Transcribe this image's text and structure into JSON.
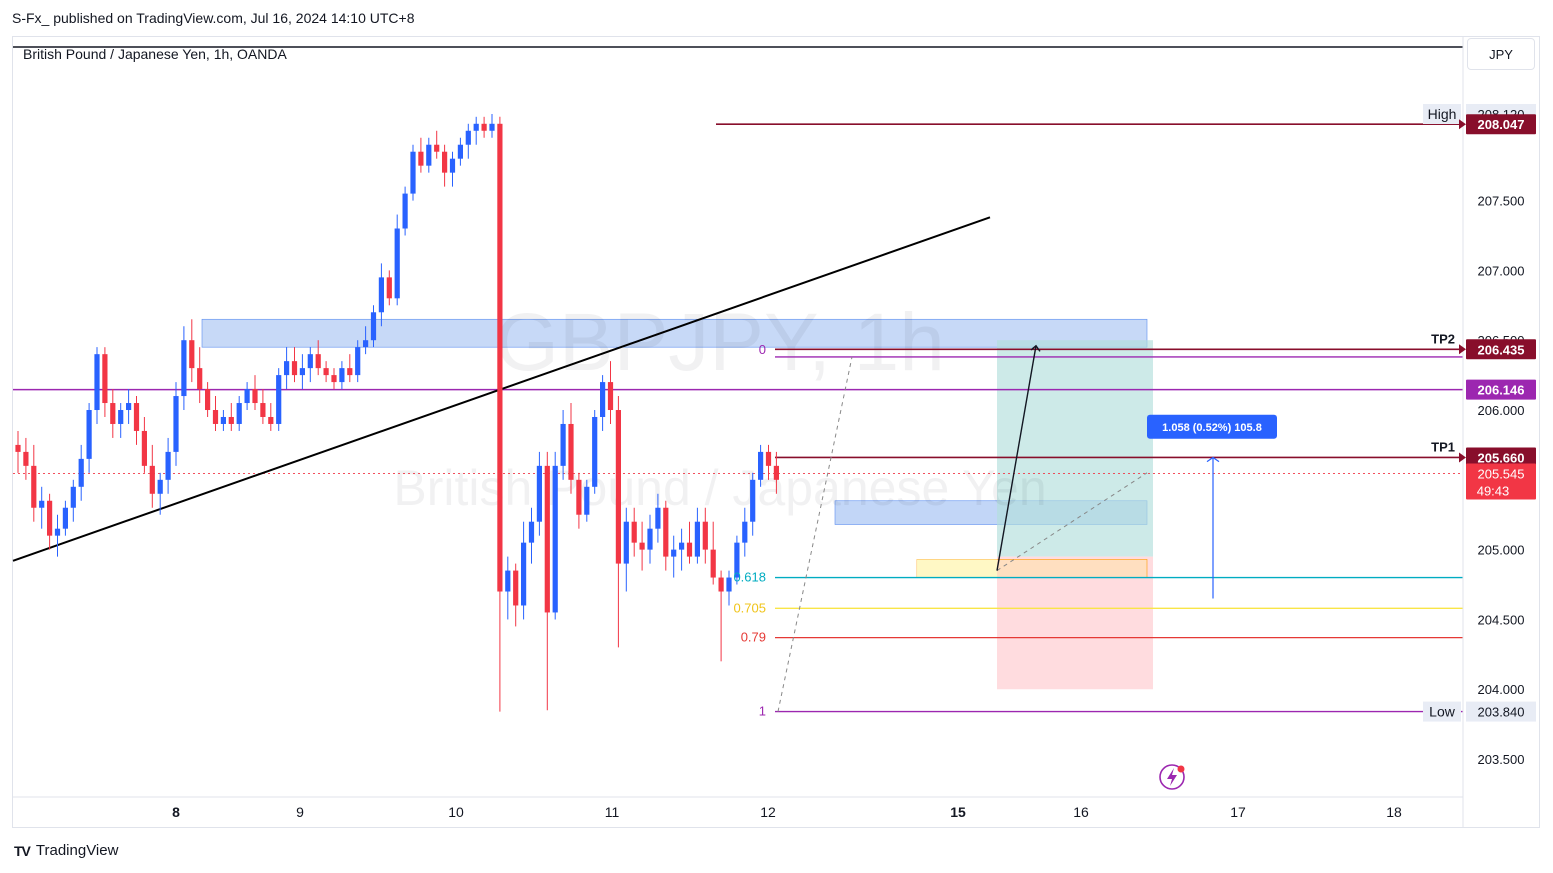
{
  "header": {
    "published_by": "S-Fx_ published on TradingView.com, Jul 16, 2024 14:10 UTC+8"
  },
  "symbol": {
    "title": "British Pound / Japanese Yen, 1h, OANDA",
    "watermark_ticker": "GBPJPY, 1h",
    "watermark_name": "British Pound / Japanese Yen"
  },
  "currency_button": "JPY",
  "footer": {
    "brand": "TradingView",
    "logo_text": "TV"
  },
  "colors": {
    "up": "#2962ff",
    "down": "#f23645",
    "resistance": "#880e2b",
    "purple": "#9c27b0",
    "teal": "#00acc1",
    "yellow": "#f9e547",
    "red_level": "#e53935",
    "zone_blue": "#90b4f0",
    "tp_zone": "#b2dfdb",
    "sl_zone": "#ffcdd2",
    "badge_blue": "#2962ff"
  },
  "chart_data": {
    "type": "candlestick",
    "symbol": "GBPJPY",
    "timeframe": "1h",
    "ylim": [
      203.35,
      208.6
    ],
    "y_ticks": [
      "208.120",
      "207.500",
      "207.000",
      "206.500",
      "206.000",
      "205.000",
      "204.500",
      "204.000",
      "203.840",
      "203.500"
    ],
    "y_tick_values": [
      208.12,
      207.5,
      207.0,
      206.5,
      206.0,
      205.0,
      204.5,
      204.0,
      203.84,
      203.5
    ],
    "x_ticks": [
      "8",
      "9",
      "10",
      "11",
      "12",
      "15",
      "16",
      "17",
      "18"
    ],
    "x_ticks_bold": [
      "8",
      "15"
    ],
    "price_labels": [
      {
        "text": "High",
        "value": "208.120",
        "price": 208.12,
        "style": "high"
      },
      {
        "text": "",
        "value": "208.047",
        "price": 208.047,
        "style": "resistance"
      },
      {
        "text": "TP2",
        "value": "206.435",
        "price": 206.435,
        "style": "resistance"
      },
      {
        "text": "",
        "value": "206.146",
        "price": 206.146,
        "style": "purple"
      },
      {
        "text": "TP1",
        "value": "205.660",
        "price": 205.66,
        "style": "resistance"
      },
      {
        "text": "",
        "value": "205.545",
        "price": 205.545,
        "style": "current",
        "countdown": "49:43"
      },
      {
        "text": "Low",
        "value": "203.840",
        "price": 203.84,
        "style": "low"
      }
    ],
    "fib_levels": [
      {
        "label": "0",
        "price": 206.43
      },
      {
        "label": "0.618",
        "price": 204.8
      },
      {
        "label": "0.705",
        "price": 204.58
      },
      {
        "label": "0.79",
        "price": 204.37
      },
      {
        "label": "1",
        "price": 203.84
      }
    ],
    "measure_label": "1.058 (0.52%) 105.8",
    "candles": [
      [
        205.75,
        205.85,
        205.55,
        205.7
      ],
      [
        205.7,
        205.8,
        205.5,
        205.6
      ],
      [
        205.6,
        205.75,
        205.2,
        205.3
      ],
      [
        205.3,
        205.45,
        205.15,
        205.35
      ],
      [
        205.35,
        205.4,
        205.0,
        205.1
      ],
      [
        205.1,
        205.25,
        204.95,
        205.15
      ],
      [
        205.15,
        205.35,
        205.1,
        205.3
      ],
      [
        205.3,
        205.5,
        205.2,
        205.45
      ],
      [
        205.45,
        205.75,
        205.35,
        205.65
      ],
      [
        205.65,
        206.05,
        205.55,
        206.0
      ],
      [
        206.0,
        206.45,
        205.9,
        206.4
      ],
      [
        206.4,
        206.45,
        205.95,
        206.05
      ],
      [
        206.05,
        206.15,
        205.8,
        205.9
      ],
      [
        205.9,
        206.05,
        205.8,
        206.0
      ],
      [
        206.0,
        206.15,
        205.9,
        206.05
      ],
      [
        206.05,
        206.1,
        205.75,
        205.85
      ],
      [
        205.85,
        205.95,
        205.55,
        205.6
      ],
      [
        205.6,
        205.75,
        205.3,
        205.4
      ],
      [
        205.4,
        205.55,
        205.25,
        205.5
      ],
      [
        205.5,
        205.8,
        205.4,
        205.7
      ],
      [
        205.7,
        206.2,
        205.6,
        206.1
      ],
      [
        206.1,
        206.6,
        206.0,
        206.5
      ],
      [
        206.5,
        206.65,
        206.2,
        206.3
      ],
      [
        206.3,
        206.45,
        206.05,
        206.15
      ],
      [
        206.15,
        206.2,
        205.95,
        206.0
      ],
      [
        206.0,
        206.1,
        205.85,
        205.9
      ],
      [
        205.9,
        206.0,
        205.85,
        205.95
      ],
      [
        205.95,
        206.05,
        205.85,
        205.9
      ],
      [
        205.9,
        206.1,
        205.85,
        206.05
      ],
      [
        206.05,
        206.2,
        206.0,
        206.15
      ],
      [
        206.15,
        206.25,
        206.0,
        206.05
      ],
      [
        206.05,
        206.15,
        205.9,
        205.95
      ],
      [
        205.95,
        206.05,
        205.85,
        205.9
      ],
      [
        205.9,
        206.3,
        205.85,
        206.25
      ],
      [
        206.25,
        206.45,
        206.15,
        206.35
      ],
      [
        206.35,
        206.45,
        206.2,
        206.25
      ],
      [
        206.25,
        206.4,
        206.15,
        206.3
      ],
      [
        206.3,
        206.45,
        206.2,
        206.4
      ],
      [
        206.4,
        206.5,
        206.25,
        206.3
      ],
      [
        206.3,
        206.35,
        206.2,
        206.25
      ],
      [
        206.25,
        206.3,
        206.15,
        206.2
      ],
      [
        206.2,
        206.35,
        206.15,
        206.3
      ],
      [
        206.3,
        206.4,
        206.2,
        206.25
      ],
      [
        206.25,
        206.5,
        206.2,
        206.45
      ],
      [
        206.45,
        206.6,
        206.4,
        206.5
      ],
      [
        206.5,
        206.75,
        206.45,
        206.7
      ],
      [
        206.7,
        207.05,
        206.6,
        206.95
      ],
      [
        206.95,
        207.0,
        206.75,
        206.8
      ],
      [
        206.8,
        207.4,
        206.75,
        207.3
      ],
      [
        207.3,
        207.6,
        207.25,
        207.55
      ],
      [
        207.55,
        207.9,
        207.5,
        207.85
      ],
      [
        207.85,
        207.95,
        207.7,
        207.75
      ],
      [
        207.75,
        207.95,
        207.7,
        207.9
      ],
      [
        207.9,
        208.0,
        207.8,
        207.85
      ],
      [
        207.85,
        207.9,
        207.6,
        207.7
      ],
      [
        207.7,
        207.85,
        207.6,
        207.8
      ],
      [
        207.8,
        207.95,
        207.75,
        207.9
      ],
      [
        207.9,
        208.05,
        207.8,
        208.0
      ],
      [
        208.0,
        208.1,
        207.9,
        208.05
      ],
      [
        208.05,
        208.1,
        207.95,
        208.0
      ],
      [
        208.0,
        208.12,
        207.95,
        208.05
      ],
      [
        208.05,
        208.1,
        203.84,
        204.7
      ],
      [
        204.7,
        204.95,
        204.5,
        204.85
      ],
      [
        204.85,
        204.9,
        204.45,
        204.6
      ],
      [
        204.6,
        205.2,
        204.5,
        205.05
      ],
      [
        205.05,
        205.3,
        204.9,
        205.2
      ],
      [
        205.2,
        205.7,
        205.1,
        205.6
      ],
      [
        205.6,
        205.7,
        203.85,
        204.55
      ],
      [
        204.55,
        205.7,
        204.5,
        205.6
      ],
      [
        205.6,
        206.0,
        205.5,
        205.9
      ],
      [
        205.9,
        206.05,
        205.4,
        205.5
      ],
      [
        205.5,
        205.55,
        205.15,
        205.25
      ],
      [
        205.25,
        205.5,
        205.2,
        205.45
      ],
      [
        205.45,
        206.0,
        205.4,
        205.95
      ],
      [
        205.95,
        206.25,
        205.85,
        206.2
      ],
      [
        206.2,
        206.35,
        205.9,
        206.0
      ],
      [
        206.0,
        206.1,
        204.3,
        204.9
      ],
      [
        204.9,
        205.3,
        204.7,
        205.2
      ],
      [
        205.2,
        205.3,
        204.95,
        205.05
      ],
      [
        205.05,
        205.2,
        204.85,
        205.0
      ],
      [
        205.0,
        205.25,
        204.9,
        205.15
      ],
      [
        205.15,
        205.4,
        205.05,
        205.3
      ],
      [
        205.3,
        205.35,
        204.85,
        204.95
      ],
      [
        204.95,
        205.1,
        204.8,
        205.0
      ],
      [
        205.0,
        205.15,
        204.85,
        205.05
      ],
      [
        205.05,
        205.2,
        204.9,
        204.95
      ],
      [
        204.95,
        205.3,
        204.9,
        205.2
      ],
      [
        205.2,
        205.3,
        204.9,
        205.0
      ],
      [
        205.0,
        205.2,
        204.75,
        204.8
      ],
      [
        204.8,
        204.85,
        204.2,
        204.7
      ],
      [
        204.7,
        204.85,
        204.6,
        204.8
      ],
      [
        204.8,
        205.1,
        204.75,
        205.05
      ],
      [
        205.05,
        205.3,
        204.95,
        205.2
      ],
      [
        205.2,
        205.55,
        205.1,
        205.5
      ],
      [
        205.5,
        205.75,
        205.45,
        205.7
      ],
      [
        205.7,
        205.75,
        205.5,
        205.6
      ],
      [
        205.6,
        205.7,
        205.4,
        205.5
      ]
    ]
  }
}
